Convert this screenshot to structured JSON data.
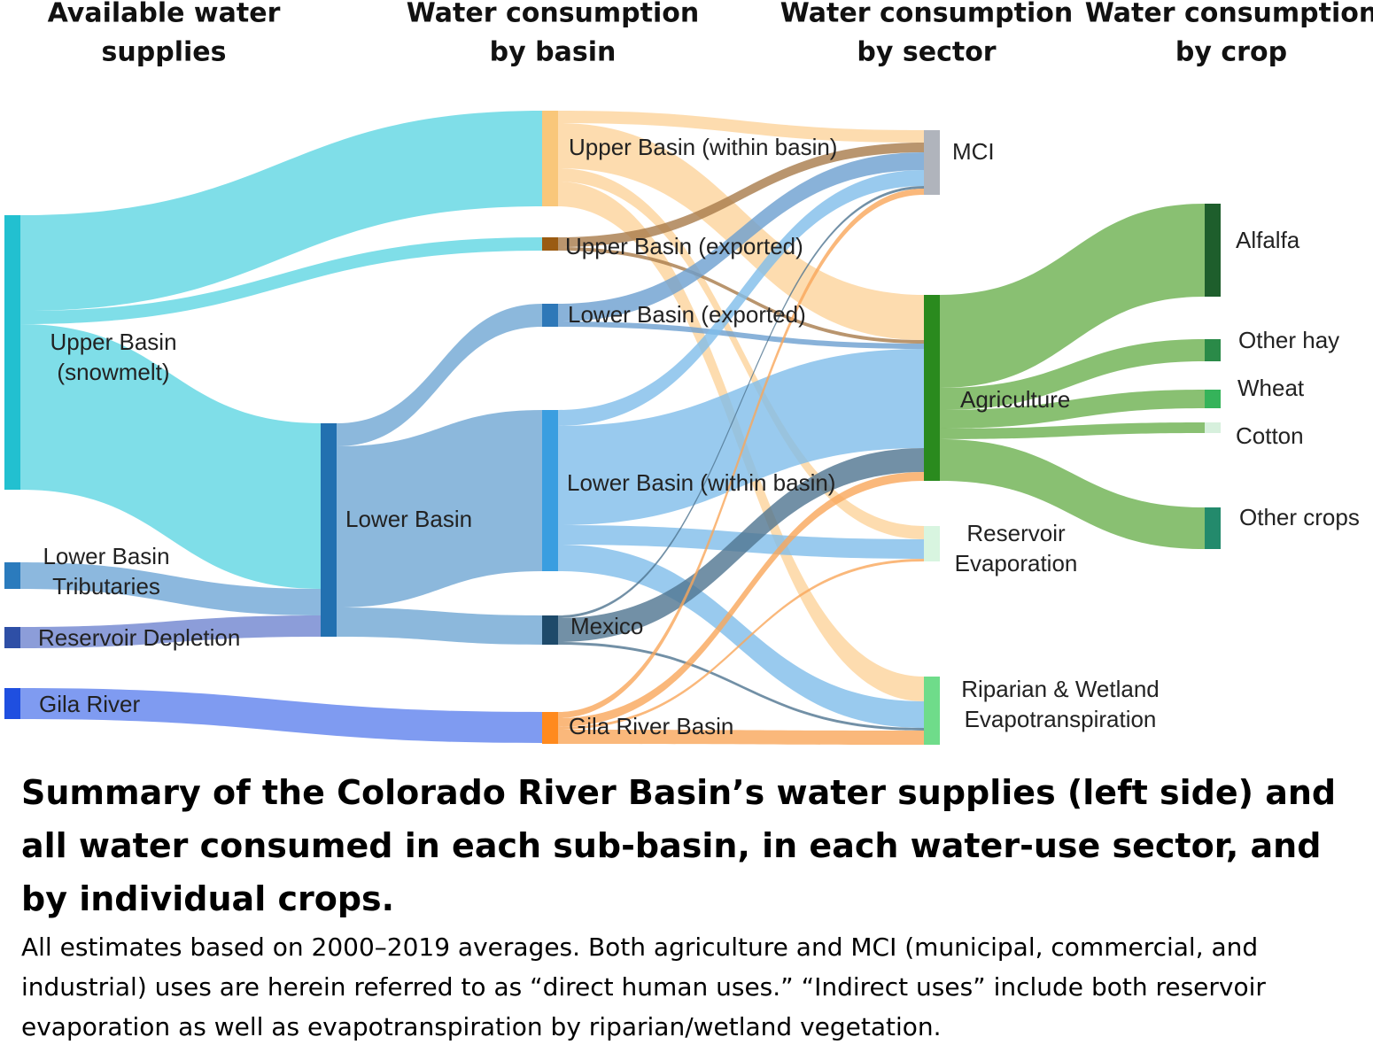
{
  "chart_data": {
    "type": "sankey",
    "column_titles": [
      [
        "Available water",
        "supplies"
      ],
      [
        "Water consumption",
        "by basin"
      ],
      [
        "Water consumption",
        "by sector"
      ],
      [
        "Water consumption",
        "by crop"
      ]
    ],
    "nodes": [
      {
        "name": [
          "Upper Basin",
          "(snowmelt)"
        ],
        "color": "#22c0d0",
        "link_color": "#5fd6e2"
      },
      {
        "name": [
          "Lower Basin",
          "Tributaries"
        ],
        "color": "#2b7bbd",
        "link_color": "#6fa6d6"
      },
      {
        "name": [
          "Reservoir Depletion"
        ],
        "color": "#2e4fa6",
        "link_color": "#6f85cf"
      },
      {
        "name": [
          "Gila River"
        ],
        "color": "#1f4fe0",
        "link_color": "#5f82ee"
      },
      {
        "name": [
          "Lower Basin"
        ],
        "color": "#2270b0",
        "link_color": "#6fa6d3"
      },
      {
        "name": [
          "Upper Basin (within basin)"
        ],
        "color": "#f9c77a",
        "link_color": "#fcd39b"
      },
      {
        "name": [
          "Upper Basin (exported)"
        ],
        "color": "#9a5b12",
        "link_color": "#a87a4a"
      },
      {
        "name": [
          "Lower Basin (exported)"
        ],
        "color": "#2e78b8",
        "link_color": "#6c9fcf"
      },
      {
        "name": [
          "Lower Basin (within basin)"
        ],
        "color": "#3a9ee0",
        "link_color": "#80bdea"
      },
      {
        "name": [
          "Mexico"
        ],
        "color": "#1e4a6a",
        "link_color": "#4f7490"
      },
      {
        "name": [
          "Gila River Basin"
        ],
        "color": "#ff8a1e",
        "link_color": "#f9a65a"
      },
      {
        "name": [
          "MCI"
        ],
        "color": "#b0b4bc",
        "link_color": "#b0b4bc"
      },
      {
        "name": [
          "Agriculture"
        ],
        "color": "#2a8a1e",
        "link_color": "#6bb04f"
      },
      {
        "name": [
          "Reservoir",
          "Evaporation"
        ],
        "color": "#d8f5e0",
        "link_color": "#d8f5e0"
      },
      {
        "name": [
          "Riparian & Wetland",
          "Evapotranspiration"
        ],
        "color": "#6fdc8a",
        "link_color": "#6fdc8a"
      },
      {
        "name": [
          "Alfalfa"
        ],
        "color": "#1e5e2c",
        "link_color": "#1e5e2c"
      },
      {
        "name": [
          "Other hay"
        ],
        "color": "#2a8a48",
        "link_color": "#2a8a48"
      },
      {
        "name": [
          "Wheat"
        ],
        "color": "#35b35a",
        "link_color": "#35b35a"
      },
      {
        "name": [
          "Cotton"
        ],
        "color": "#d7f0dd",
        "link_color": "#d7f0dd"
      },
      {
        "name": [
          "Other crops"
        ],
        "color": "#238a6c",
        "link_color": "#238a6c"
      }
    ],
    "links": [
      {
        "source": 0,
        "target": 5,
        "value": 108
      },
      {
        "source": 0,
        "target": 6,
        "value": 15
      },
      {
        "source": 0,
        "target": 4,
        "value": 187
      },
      {
        "source": 1,
        "target": 4,
        "value": 30
      },
      {
        "source": 2,
        "target": 4,
        "value": 24
      },
      {
        "source": 3,
        "target": 10,
        "value": 35
      },
      {
        "source": 4,
        "target": 7,
        "value": 26
      },
      {
        "source": 4,
        "target": 8,
        "value": 182
      },
      {
        "source": 4,
        "target": 9,
        "value": 33
      },
      {
        "source": 5,
        "target": 11,
        "value": 14
      },
      {
        "source": 5,
        "target": 12,
        "value": 51
      },
      {
        "source": 5,
        "target": 13,
        "value": 15
      },
      {
        "source": 5,
        "target": 14,
        "value": 28
      },
      {
        "source": 6,
        "target": 11,
        "value": 11
      },
      {
        "source": 6,
        "target": 12,
        "value": 4
      },
      {
        "source": 7,
        "target": 11,
        "value": 20
      },
      {
        "source": 7,
        "target": 12,
        "value": 6
      },
      {
        "source": 8,
        "target": 11,
        "value": 18
      },
      {
        "source": 8,
        "target": 12,
        "value": 112
      },
      {
        "source": 8,
        "target": 13,
        "value": 22
      },
      {
        "source": 8,
        "target": 14,
        "value": 30
      },
      {
        "source": 9,
        "target": 11,
        "value": 3
      },
      {
        "source": 9,
        "target": 12,
        "value": 27
      },
      {
        "source": 9,
        "target": 14,
        "value": 3
      },
      {
        "source": 10,
        "target": 11,
        "value": 7
      },
      {
        "source": 10,
        "target": 12,
        "value": 10
      },
      {
        "source": 10,
        "target": 13,
        "value": 3
      },
      {
        "source": 10,
        "target": 14,
        "value": 16
      },
      {
        "source": 12,
        "target": 15,
        "value": 105
      },
      {
        "source": 12,
        "target": 16,
        "value": 25
      },
      {
        "source": 12,
        "target": 17,
        "value": 21
      },
      {
        "source": 12,
        "target": 18,
        "value": 12
      },
      {
        "source": 12,
        "target": 19,
        "value": 47
      }
    ]
  },
  "caption": {
    "title": "Summary of the Colorado River Basin’s water supplies (left side) and all water consumed in each sub-basin, in each water-use sector, and by individual crops.",
    "body": "All estimates based on 2000–2019 averages. Both agriculture and MCI (municipal, commercial, and industrial) uses are herein referred to as “direct human uses.” “Indirect uses” include both reservoir evaporation as well as evapotranspiration by riparian/wetland vegetation."
  }
}
